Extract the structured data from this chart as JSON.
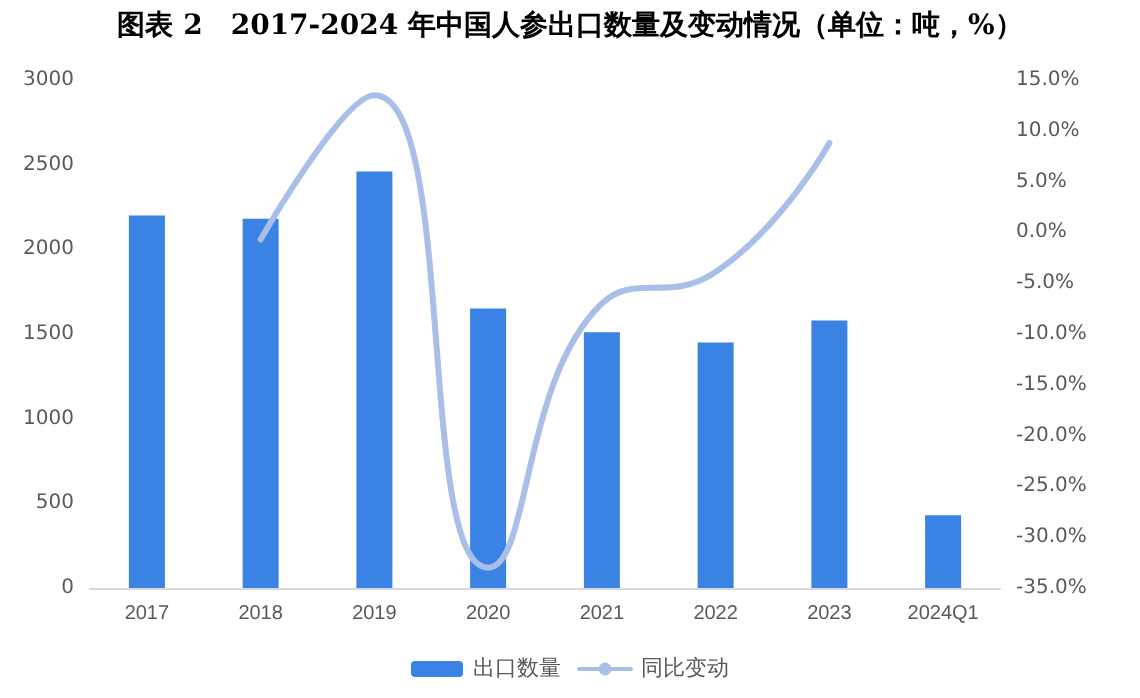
{
  "chart_data": {
    "type": "bar",
    "title": "图表 2　2017-2024 年中国人参出口数量及变动情况（单位：吨，%）",
    "categories": [
      "2017",
      "2018",
      "2019",
      "2020",
      "2021",
      "2022",
      "2023",
      "2024Q1"
    ],
    "series": [
      {
        "name": "出口数量",
        "color": "#3a82e4",
        "values": [
          2200,
          2180,
          2460,
          1650,
          1510,
          1450,
          1580,
          430
        ]
      },
      {
        "name": "同比变动",
        "type": "line",
        "axis": "y2",
        "color": "#a9bfe8",
        "values": [
          null,
          -0.7,
          13.5,
          -33,
          -7,
          -3.9,
          8.8,
          null
        ]
      }
    ],
    "ylim": [
      0,
      3000
    ],
    "yticks": [
      0,
      500,
      1000,
      1500,
      2000,
      2500,
      3000
    ],
    "y2lim": [
      -35,
      15
    ],
    "y2ticks": [
      {
        "value": -35,
        "label": "-35.0%"
      },
      {
        "value": -30,
        "label": "-30.0%"
      },
      {
        "value": -25,
        "label": "-25.0%"
      },
      {
        "value": -20,
        "label": "-20.0%"
      },
      {
        "value": -15,
        "label": "-15.0%"
      },
      {
        "value": -10,
        "label": "-10.0%"
      },
      {
        "value": -5,
        "label": "-5.0%"
      },
      {
        "value": 0,
        "label": "0.0%"
      },
      {
        "value": 5,
        "label": "5.0%"
      },
      {
        "value": 10,
        "label": "10.0%"
      },
      {
        "value": 15,
        "label": "15.0%"
      }
    ],
    "legend": "bottom",
    "grid": false,
    "marker": "none",
    "line_style": "solid"
  }
}
